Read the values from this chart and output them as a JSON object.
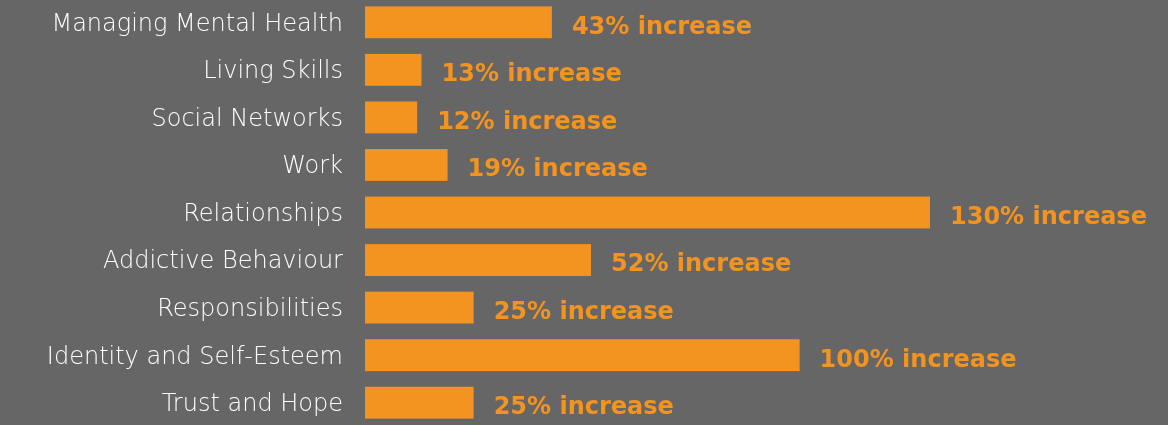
{
  "chart_data": {
    "type": "bar",
    "orientation": "horizontal",
    "categories": [
      "Managing Mental Health",
      "Living Skills",
      "Social Networks",
      "Work",
      "Relationships",
      "Addictive Behaviour",
      "Responsibilities",
      "Identity and Self-Esteem",
      "Trust and Hope"
    ],
    "values": [
      43,
      13,
      12,
      19,
      130,
      52,
      25,
      100,
      25
    ],
    "color": "#f39320",
    "value_labels": [
      "43% increase",
      "13% increase",
      "12% increase",
      "19% increase",
      "130% increase",
      "52% increase",
      "25% increase",
      "100% increase",
      "25% increase"
    ]
  }
}
